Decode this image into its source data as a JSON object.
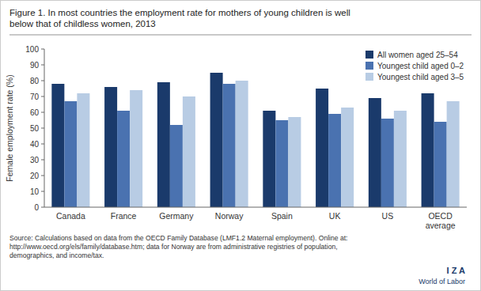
{
  "chart_data": {
    "type": "bar",
    "title": "Figure 1. In most countries the employment rate for mothers of young children is well\nbelow that of childless women, 2013",
    "categories": [
      "Canada",
      "France",
      "Germany",
      "Norway",
      "Spain",
      "UK",
      "US",
      "OECD\naverage"
    ],
    "series": [
      {
        "name": "All women aged 25–54",
        "color": "#1a3a6b",
        "values": [
          78,
          76,
          79,
          85,
          61,
          75,
          69,
          72
        ]
      },
      {
        "name": "Youngest child aged 0–2",
        "color": "#4a72b0",
        "values": [
          67,
          61,
          52,
          78,
          55,
          59,
          56,
          54
        ]
      },
      {
        "name": "Youngest child aged 3–5",
        "color": "#b8cce4",
        "values": [
          72,
          74,
          70,
          80,
          57,
          63,
          61,
          67
        ]
      }
    ],
    "ylabel": "Female employment rate (%)",
    "ylim": [
      0,
      100
    ],
    "yticks": [
      0,
      10,
      20,
      30,
      40,
      50,
      60,
      70,
      80,
      90,
      100
    ],
    "grid": false,
    "legend": "upper right",
    "annotations": [
      "Source: Calculations based on data from the OECD Family Database (LMF1.2 Maternal employment). Online at:\nhttp://www.oecd.org/els/family/database.htm; data for Norway are from administrative registries of population,\ndemographics, and income/tax.",
      "I Z A",
      "World of Labor"
    ]
  }
}
